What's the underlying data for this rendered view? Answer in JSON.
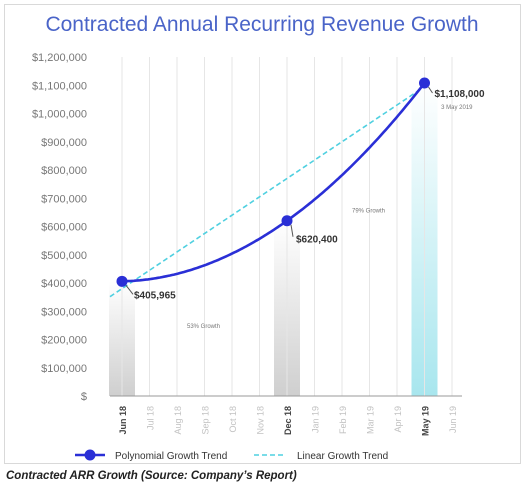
{
  "chart_data": {
    "type": "line",
    "title": "Contracted Annual Recurring Revenue Growth",
    "categories": [
      "Jun 18",
      "Jul 18",
      "Aug 18",
      "Sep 18",
      "Oct 18",
      "Nov 18",
      "Dec 18",
      "Jan 19",
      "Feb 19",
      "Mar 19",
      "Apr 19",
      "May 19",
      "Jun 19"
    ],
    "highlighted_categories": [
      "Jun 18",
      "Dec 18",
      "May 19"
    ],
    "y_ticks": [
      "$",
      "$100,000",
      "$200,000",
      "$300,000",
      "$400,000",
      "$500,000",
      "$600,000",
      "$700,000",
      "$800,000",
      "$900,000",
      "$1,000,000",
      "$1,100,000",
      "$1,200,000"
    ],
    "ylim": [
      0,
      1200000
    ],
    "grid": "vertical",
    "legend_position": "bottom",
    "series": [
      {
        "name": "Polynomial Growth Trend",
        "style": "solid",
        "color": "#2a2fd6",
        "points": [
          {
            "x": "Jun 18",
            "y": 405965,
            "label": "$405,965"
          },
          {
            "x": "Dec 18",
            "y": 620400,
            "label": "$620,400"
          },
          {
            "x": "May 19",
            "y": 1108000,
            "label": "$1,108,000"
          }
        ]
      },
      {
        "name": "Linear Growth Trend",
        "style": "dashed",
        "color": "#4fd0e0",
        "points": [
          {
            "x": "Jun 18",
            "y": 380000
          },
          {
            "x": "May 19",
            "y": 1095000
          }
        ]
      }
    ],
    "bars": [
      {
        "x": "Jun 18",
        "y": 405965,
        "color": "#d4d4d4"
      },
      {
        "x": "Dec 18",
        "y": 620400,
        "color": "#d4d4d4"
      },
      {
        "x": "May 19",
        "y": 1108000,
        "color": "#a8e6ee"
      }
    ],
    "annotations": [
      {
        "text": "53% Growth",
        "x": "Aug 18",
        "y": 240000
      },
      {
        "text": "79% Growth",
        "x": "Feb 19",
        "y": 650000
      },
      {
        "text": "3 May 2019",
        "x": "May 19",
        "y": 1045000
      }
    ]
  },
  "caption": "Contracted ARR Growth (Source: Company’s Report)",
  "colors": {
    "title": "#4a64c8",
    "poly_line": "#2a2fd6",
    "linear_line": "#4fd0e0",
    "tick_text": "#777777",
    "grid": "#e6e6e6"
  }
}
